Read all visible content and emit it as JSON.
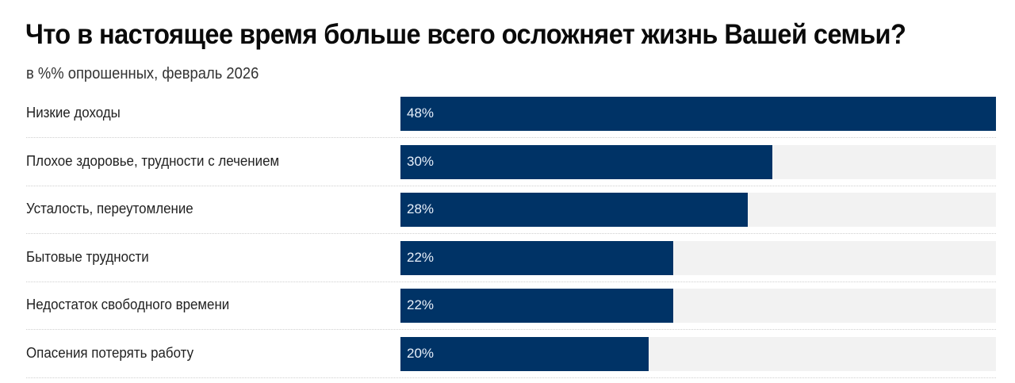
{
  "header": {
    "title": "Что в настоящее время больше всего осложняет жизнь Вашей семьи?",
    "subtitle": "в %% опрошенных, февраль 2026"
  },
  "colors": {
    "bar": "#003366",
    "track": "#f2f2f2",
    "value_text": "#e8f0fa"
  },
  "rows": [
    {
      "label": "Низкие доходы",
      "value": 48,
      "value_label": "48%"
    },
    {
      "label": "Плохое здоровье, трудности с лечением",
      "value": 30,
      "value_label": "30%"
    },
    {
      "label": "Усталость, переутомление",
      "value": 28,
      "value_label": "28%"
    },
    {
      "label": "Бытовые трудности",
      "value": 22,
      "value_label": "22%"
    },
    {
      "label": "Недостаток свободного времени",
      "value": 22,
      "value_label": "22%"
    },
    {
      "label": "Опасения потерять работу",
      "value": 20,
      "value_label": "20%"
    }
  ],
  "chart_data": {
    "type": "bar",
    "orientation": "horizontal",
    "title": "Что в настоящее время больше всего осложняет жизнь Вашей семьи?",
    "subtitle": "в %% опрошенных, февраль 2026",
    "categories": [
      "Низкие доходы",
      "Плохое здоровье, трудности с лечением",
      "Усталость, переутомление",
      "Бытовые трудности",
      "Недостаток свободного времени",
      "Опасения потерять работу"
    ],
    "values": [
      48,
      30,
      28,
      22,
      22,
      20
    ],
    "data_labels": [
      "48%",
      "30%",
      "28%",
      "22%",
      "22%",
      "20%"
    ],
    "xlabel": "",
    "ylabel": "",
    "xlim": [
      0,
      48
    ],
    "unit": "%",
    "grid": false,
    "legend": null
  }
}
